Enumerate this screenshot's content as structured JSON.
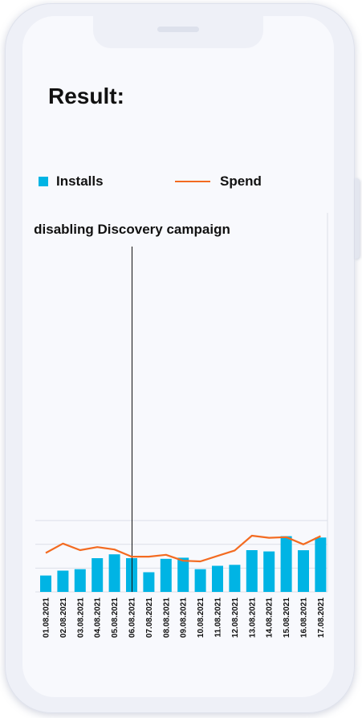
{
  "header": {
    "title": "Result:"
  },
  "colors": {
    "installs": "#00b4e4",
    "spend": "#f36b21",
    "grid": "#dcdfe8",
    "marker": "#111111"
  },
  "chart_data": {
    "type": "bar",
    "title": "",
    "xlabel": "",
    "ylabel": "",
    "categories": [
      "01.08.2021",
      "02.08.2021",
      "03.08.2021",
      "04.08.2021",
      "05.08.2021",
      "06.08.2021",
      "07.08.2021",
      "08.08.2021",
      "09.08.2021",
      "10.08.2021",
      "11.08.2021",
      "12.08.2021",
      "13.08.2021",
      "14.08.2021",
      "15.08.2021",
      "16.08.2021",
      "17.08.2021"
    ],
    "series": [
      {
        "name": "Installs",
        "type": "bar",
        "values": [
          27.5,
          35.8,
          38.2,
          56.7,
          63.2,
          56.7,
          33.0,
          55.6,
          57.5,
          38.2,
          43.8,
          45.5,
          70.2,
          68.0,
          93.7,
          70.0,
          91.3
        ]
      },
      {
        "name": "Spend",
        "type": "line",
        "values": [
          65.5,
          81.3,
          70.2,
          75.3,
          71.2,
          59.2,
          59.2,
          62.4,
          52.3,
          51.3,
          60.5,
          69.7,
          94.5,
          91.0,
          92.0,
          79.9,
          93.8
        ]
      }
    ],
    "ylim": [
      0,
      160
    ],
    "grid": true,
    "legend": "top",
    "annotations": [
      {
        "text": "disabling Discovery campaign",
        "x": "06.08.2021",
        "type": "vertical-line"
      }
    ]
  }
}
